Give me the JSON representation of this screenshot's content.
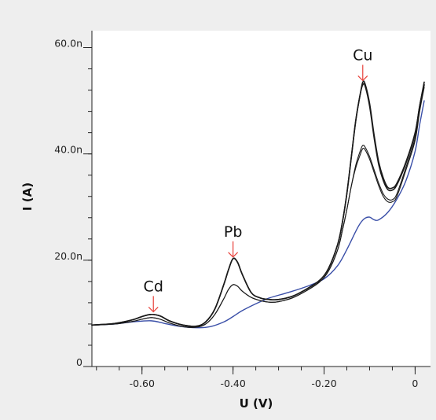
{
  "chart_data": {
    "type": "line",
    "xlabel": "U (V)",
    "ylabel": "I (A)",
    "xlim": [
      -0.71,
      0.02
    ],
    "ylim": [
      0,
      62
    ],
    "x_ticks": [
      {
        "value": -0.6,
        "label": "-0.60"
      },
      {
        "value": -0.4,
        "label": "-0.40"
      },
      {
        "value": -0.2,
        "label": "-0.20"
      },
      {
        "value": 0.0,
        "label": "0"
      }
    ],
    "y_ticks": [
      {
        "value": 0,
        "label": "0"
      },
      {
        "value": 20,
        "label": "20.0n"
      },
      {
        "value": 40,
        "label": "40.0n"
      },
      {
        "value": 60,
        "label": "60.0n"
      }
    ],
    "x_minor_step": 0.05,
    "y_minor_step": 4,
    "grid": false,
    "annotations": [
      {
        "text": "Cd",
        "x": -0.575,
        "y": 10.0
      },
      {
        "text": "Pb",
        "x": -0.4,
        "y": 20.3
      },
      {
        "text": "Cu",
        "x": -0.115,
        "y": 53.5
      }
    ],
    "arrow_color": "#e8413a",
    "series": [
      {
        "color": "#3a4fa8",
        "width": 1.4,
        "x": [
          -0.71,
          -0.66,
          -0.62,
          -0.58,
          -0.55,
          -0.52,
          -0.48,
          -0.45,
          -0.42,
          -0.4,
          -0.38,
          -0.35,
          -0.32,
          -0.28,
          -0.24,
          -0.2,
          -0.17,
          -0.15,
          -0.13,
          -0.12,
          -0.11,
          -0.1,
          -0.09,
          -0.08,
          -0.06,
          -0.04,
          -0.02,
          0.0,
          0.01,
          0.02
        ],
        "y": [
          7.8,
          8.0,
          8.4,
          8.6,
          8.1,
          7.6,
          7.3,
          7.5,
          8.4,
          9.4,
          10.5,
          11.8,
          12.9,
          13.9,
          15.0,
          16.5,
          19.0,
          22.0,
          25.5,
          27.0,
          27.9,
          28.1,
          27.6,
          27.6,
          29.0,
          31.5,
          35.0,
          40.5,
          45.5,
          50.0
        ]
      },
      {
        "color": "#1a1a1a",
        "width": 1.6,
        "x": [
          -0.71,
          -0.66,
          -0.62,
          -0.6,
          -0.58,
          -0.56,
          -0.54,
          -0.51,
          -0.48,
          -0.46,
          -0.44,
          -0.42,
          -0.41,
          -0.4,
          -0.39,
          -0.38,
          -0.36,
          -0.34,
          -0.32,
          -0.3,
          -0.27,
          -0.24,
          -0.21,
          -0.19,
          -0.17,
          -0.16,
          -0.15,
          -0.14,
          -0.13,
          -0.12,
          -0.115,
          -0.11,
          -0.1,
          -0.09,
          -0.08,
          -0.07,
          -0.06,
          -0.05,
          -0.04,
          -0.02,
          0.0,
          0.01,
          0.02
        ],
        "y": [
          7.8,
          8.1,
          8.8,
          9.4,
          9.8,
          9.5,
          8.6,
          7.8,
          7.6,
          8.4,
          10.8,
          15.5,
          18.2,
          20.3,
          19.6,
          17.4,
          13.9,
          12.9,
          12.6,
          12.6,
          13.2,
          14.5,
          16.2,
          18.5,
          23.0,
          27.0,
          32.5,
          39.5,
          46.5,
          51.5,
          53.5,
          53.2,
          49.5,
          43.5,
          38.5,
          35.5,
          33.7,
          33.6,
          34.5,
          38.5,
          44.0,
          49.0,
          53.5
        ]
      },
      {
        "color": "#1a1a1a",
        "width": 1.6,
        "x": [
          -0.71,
          -0.66,
          -0.62,
          -0.6,
          -0.58,
          -0.56,
          -0.54,
          -0.51,
          -0.48,
          -0.46,
          -0.44,
          -0.42,
          -0.41,
          -0.4,
          -0.39,
          -0.38,
          -0.36,
          -0.34,
          -0.32,
          -0.3,
          -0.27,
          -0.24,
          -0.21,
          -0.19,
          -0.17,
          -0.16,
          -0.15,
          -0.14,
          -0.13,
          -0.12,
          -0.115,
          -0.11,
          -0.1,
          -0.09,
          -0.08,
          -0.07,
          -0.06,
          -0.05,
          -0.04,
          -0.02,
          0.0,
          0.01,
          0.02
        ],
        "y": [
          7.8,
          8.1,
          8.8,
          9.4,
          9.8,
          9.5,
          8.6,
          7.8,
          7.6,
          8.4,
          10.8,
          15.5,
          18.2,
          20.3,
          19.6,
          17.4,
          13.9,
          12.9,
          12.6,
          12.6,
          13.2,
          14.5,
          16.2,
          18.5,
          23.0,
          27.0,
          32.5,
          39.5,
          46.5,
          51.5,
          53.0,
          52.8,
          49.0,
          43.0,
          38.0,
          35.0,
          33.3,
          33.2,
          34.2,
          38.3,
          43.8,
          49.0,
          53.0
        ]
      },
      {
        "color": "#1a1a1a",
        "width": 1.1,
        "x": [
          -0.71,
          -0.66,
          -0.62,
          -0.6,
          -0.58,
          -0.56,
          -0.54,
          -0.51,
          -0.48,
          -0.46,
          -0.44,
          -0.42,
          -0.41,
          -0.4,
          -0.39,
          -0.38,
          -0.36,
          -0.34,
          -0.32,
          -0.3,
          -0.27,
          -0.24,
          -0.21,
          -0.19,
          -0.17,
          -0.16,
          -0.15,
          -0.14,
          -0.13,
          -0.12,
          -0.115,
          -0.11,
          -0.1,
          -0.09,
          -0.08,
          -0.07,
          -0.06,
          -0.05,
          -0.04,
          -0.02,
          0.0,
          0.01,
          0.02
        ],
        "y": [
          7.8,
          8.0,
          8.5,
          8.9,
          9.2,
          8.9,
          8.2,
          7.5,
          7.4,
          8.0,
          9.8,
          12.8,
          14.5,
          15.4,
          15.1,
          14.2,
          13.0,
          12.4,
          12.1,
          12.2,
          12.9,
          14.2,
          15.9,
          18.0,
          22.0,
          25.5,
          29.5,
          34.0,
          38.0,
          40.7,
          41.6,
          41.3,
          39.5,
          37.0,
          34.5,
          32.5,
          31.5,
          31.4,
          32.5,
          37.5,
          43.0,
          48.5,
          53.0
        ]
      },
      {
        "color": "#1a1a1a",
        "width": 1.1,
        "x": [
          -0.71,
          -0.66,
          -0.62,
          -0.6,
          -0.58,
          -0.56,
          -0.54,
          -0.51,
          -0.48,
          -0.46,
          -0.44,
          -0.42,
          -0.41,
          -0.4,
          -0.39,
          -0.38,
          -0.36,
          -0.34,
          -0.32,
          -0.3,
          -0.27,
          -0.24,
          -0.21,
          -0.19,
          -0.17,
          -0.16,
          -0.15,
          -0.14,
          -0.13,
          -0.12,
          -0.115,
          -0.11,
          -0.1,
          -0.09,
          -0.08,
          -0.07,
          -0.06,
          -0.05,
          -0.04,
          -0.02,
          0.0,
          0.01,
          0.02
        ],
        "y": [
          7.8,
          8.0,
          8.5,
          8.9,
          9.2,
          8.9,
          8.2,
          7.5,
          7.4,
          8.0,
          9.8,
          12.8,
          14.5,
          15.4,
          15.1,
          14.2,
          13.0,
          12.4,
          12.1,
          12.2,
          12.9,
          14.2,
          15.9,
          18.0,
          22.0,
          25.5,
          29.5,
          34.0,
          37.5,
          40.0,
          41.0,
          40.8,
          39.0,
          36.5,
          34.0,
          32.0,
          31.0,
          31.0,
          32.0,
          37.0,
          42.5,
          48.0,
          52.5
        ]
      }
    ]
  }
}
